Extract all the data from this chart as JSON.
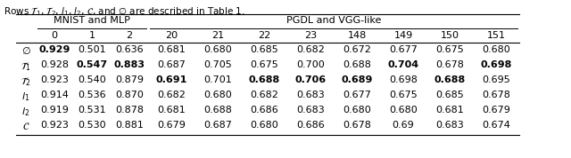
{
  "caption": "Rows $\\mathcal{T}_1$, $\\mathcal{T}_2$, $l_1$, $l_2$, $\\mathcal{C}$, and $\\emptyset$ are described in Table 1.",
  "group1_header": "MNIST and MLP",
  "group2_header": "PGDL and VGG-like",
  "col_headers": [
    "0",
    "1",
    "2",
    "20",
    "21",
    "22",
    "23",
    "148",
    "149",
    "150",
    "151"
  ],
  "row_labels": [
    "$\\emptyset$",
    "$\\mathcal{T}_1$",
    "$\\mathcal{T}_2$",
    "$l_1$",
    "$l_2$",
    "$\\mathcal{C}$"
  ],
  "data": [
    [
      "0.929",
      "0.501",
      "0.636",
      "0.681",
      "0.680",
      "0.685",
      "0.682",
      "0.672",
      "0.677",
      "0.675",
      "0.680"
    ],
    [
      "0.928",
      "0.547",
      "0.883",
      "0.687",
      "0.705",
      "0.675",
      "0.700",
      "0.688",
      "0.704",
      "0.678",
      "0.698"
    ],
    [
      "0.923",
      "0.540",
      "0.879",
      "0.691",
      "0.701",
      "0.688",
      "0.706",
      "0.689",
      "0.698",
      "0.688",
      "0.695"
    ],
    [
      "0.914",
      "0.536",
      "0.870",
      "0.682",
      "0.680",
      "0.682",
      "0.683",
      "0.677",
      "0.675",
      "0.685",
      "0.678"
    ],
    [
      "0.919",
      "0.531",
      "0.878",
      "0.681",
      "0.688",
      "0.686",
      "0.683",
      "0.680",
      "0.680",
      "0.681",
      "0.679"
    ],
    [
      "0.923",
      "0.530",
      "0.881",
      "0.679",
      "0.687",
      "0.680",
      "0.686",
      "0.678",
      "0.69",
      "0.683",
      "0.674"
    ]
  ],
  "bold_cells": [
    [
      [
        0,
        0
      ]
    ],
    [
      [
        1,
        1
      ],
      [
        1,
        2
      ],
      [
        1,
        8
      ],
      [
        1,
        10
      ]
    ],
    [
      [
        2,
        3
      ],
      [
        2,
        5
      ],
      [
        2,
        6
      ],
      [
        2,
        7
      ],
      [
        2,
        9
      ]
    ],
    [],
    [],
    []
  ],
  "fontsize": 8,
  "caption_fontsize": 7.5
}
